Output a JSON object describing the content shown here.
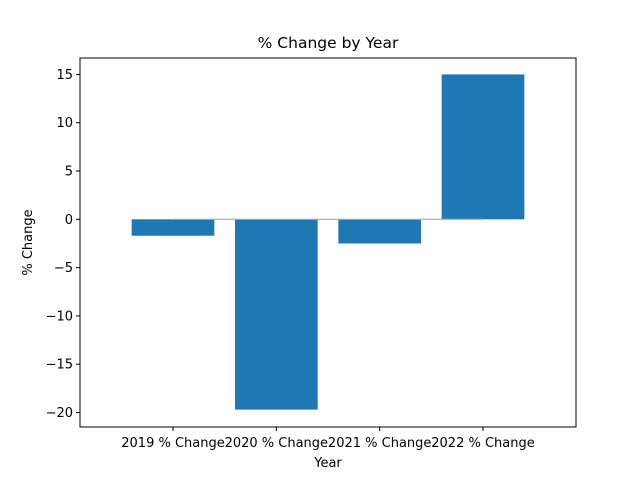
{
  "chart_data": {
    "type": "bar",
    "title": "% Change by Year",
    "xlabel": "Year",
    "ylabel": "% Change",
    "categories": [
      "2019 % Change",
      "2020 % Change",
      "2021 % Change",
      "2022 % Change"
    ],
    "values": [
      -1.7,
      -19.7,
      -2.5,
      15.0
    ],
    "ylim": [
      -21.5,
      16.7
    ],
    "yticks": [
      -20,
      -15,
      -10,
      -5,
      0,
      5,
      10,
      15
    ],
    "ytick_labels": [
      "−20",
      "−15",
      "−10",
      "−5",
      "0",
      "5",
      "10",
      "15"
    ],
    "zero_line": true,
    "grid": false,
    "colors": {
      "bar": "#1f77b4",
      "zero_line": "#aaaaaa",
      "axis": "#000000"
    }
  }
}
